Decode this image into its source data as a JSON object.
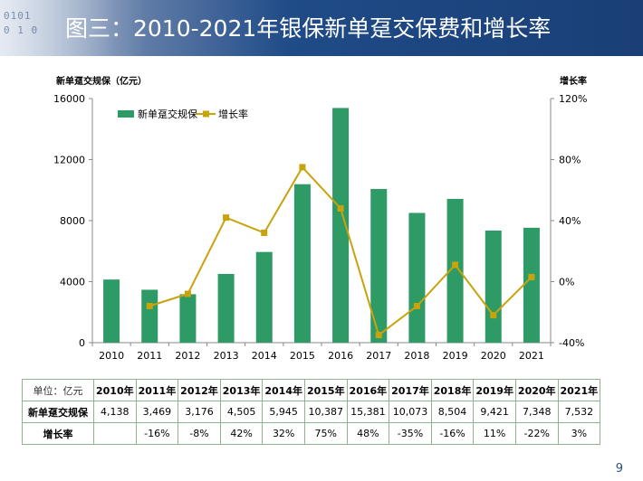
{
  "title": "图三：2010-2021年银保新单趸交保费和增长率",
  "header_bits": [
    "0101",
    "0 1 0"
  ],
  "page_number": "9",
  "chart_data": {
    "type": "bar",
    "categories": [
      "2010",
      "2011",
      "2012",
      "2013",
      "2014",
      "2015",
      "2016",
      "2017",
      "2018",
      "2019",
      "2020",
      "2021"
    ],
    "series": [
      {
        "name": "新单趸交规保",
        "type": "bar",
        "axis": "left",
        "values": [
          4138,
          3469,
          3176,
          4505,
          5945,
          10387,
          15381,
          10073,
          8504,
          9421,
          7348,
          7532
        ]
      },
      {
        "name": "增长率",
        "type": "line",
        "axis": "right",
        "values": [
          null,
          -16,
          -8,
          42,
          32,
          75,
          48,
          -35,
          -16,
          11,
          -22,
          3
        ]
      }
    ],
    "ylabel": "新单趸交规保（亿元）",
    "ylabel_right": "增长率",
    "ylim": [
      0,
      16000
    ],
    "y_ticks": [
      "0",
      "4000",
      "8000",
      "12000",
      "16000"
    ],
    "ylim_right": [
      -40,
      120
    ],
    "y2_ticks": [
      "-40%",
      "0%",
      "40%",
      "80%",
      "120%"
    ],
    "legend_position": "top-left",
    "grid": false,
    "colors": {
      "bar": "#2e9a65",
      "line": "#c9a30c"
    }
  },
  "table": {
    "unit_label": "单位：亿元",
    "years": [
      "2010年",
      "2011年",
      "2012年",
      "2013年",
      "2014年",
      "2015年",
      "2016年",
      "2017年",
      "2018年",
      "2019年",
      "2020年",
      "2021年"
    ],
    "rows": [
      {
        "label": "新单趸交规保",
        "values": [
          "4,138",
          "3,469",
          "3,176",
          "4,505",
          "5,945",
          "10,387",
          "15,381",
          "10,073",
          "8,504",
          "9,421",
          "7,348",
          "7,532"
        ]
      },
      {
        "label": "增长率",
        "values": [
          "",
          "-16%",
          "-8%",
          "42%",
          "32%",
          "75%",
          "48%",
          "-35%",
          "-16%",
          "11%",
          "-22%",
          "3%"
        ]
      }
    ]
  }
}
